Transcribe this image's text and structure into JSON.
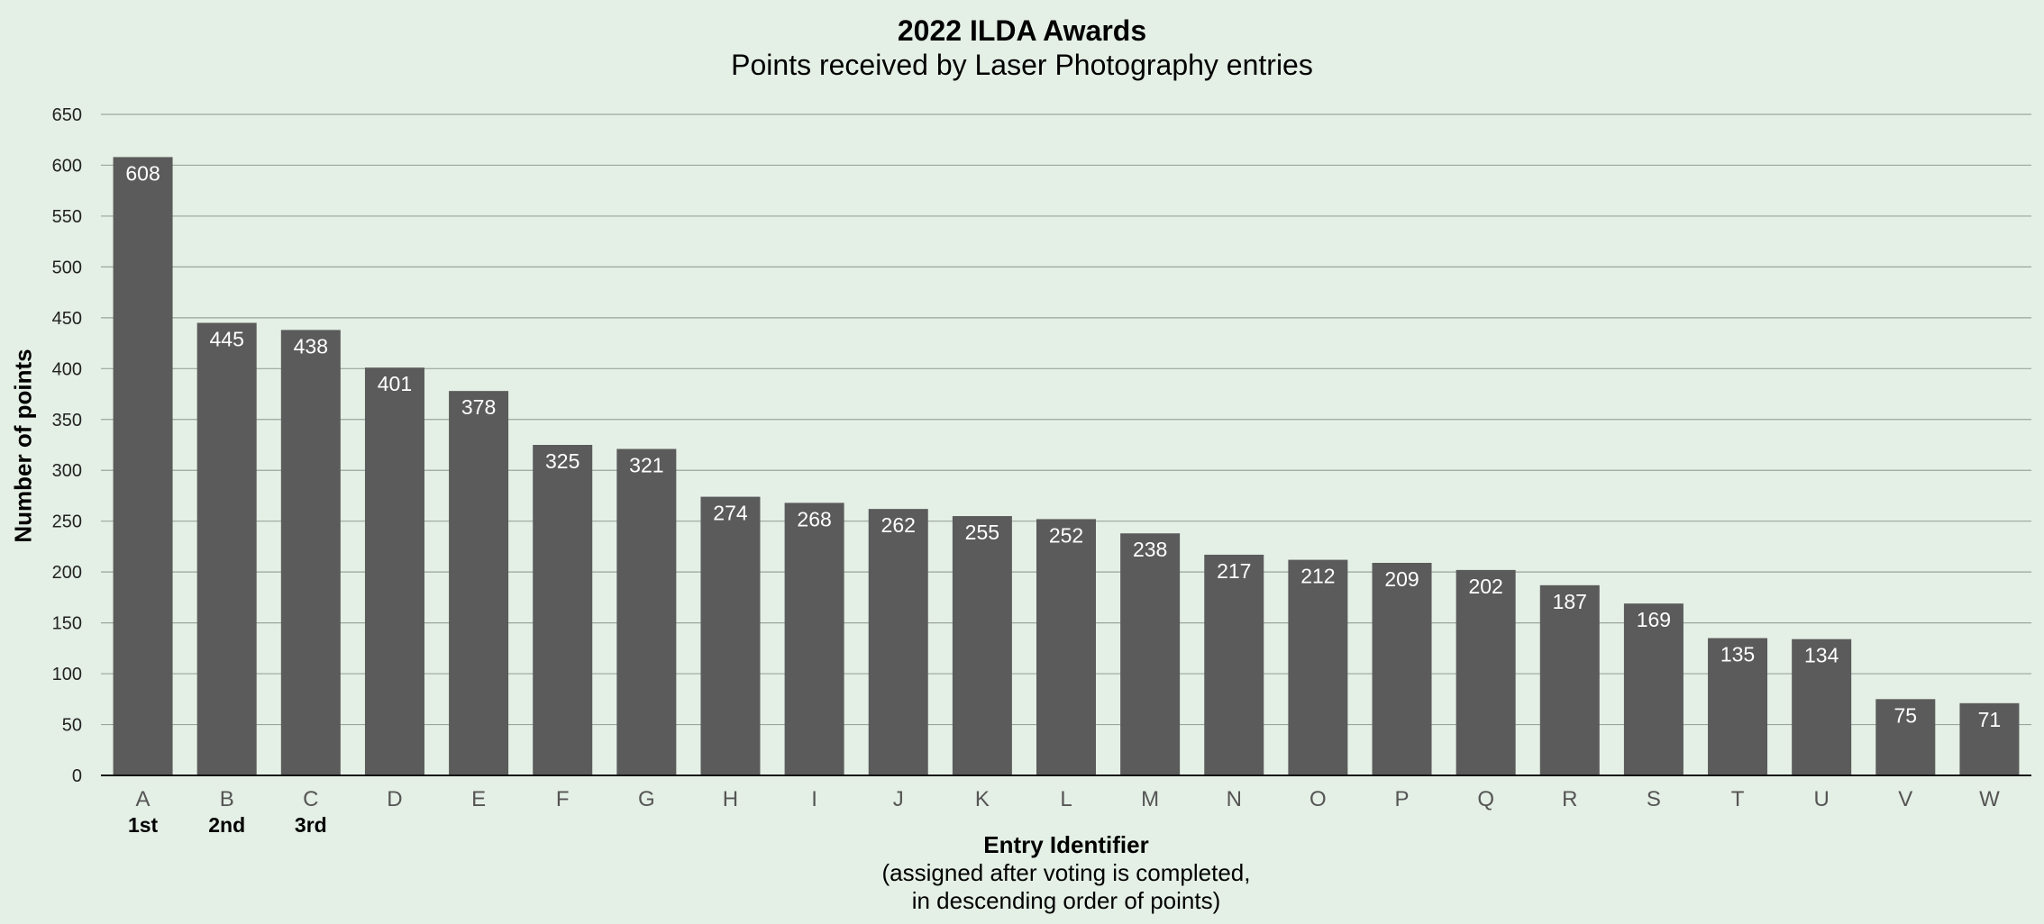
{
  "chart_data": {
    "type": "bar",
    "title": "2022 ILDA Awards",
    "subtitle": "Points received by Laser Photography entries",
    "ylabel": "Number of points",
    "xlabel": "Entry Identifier",
    "xlabel_note_lines": [
      "(assigned after voting is completed,",
      "in descending order of points)"
    ],
    "categories": [
      "A",
      "B",
      "C",
      "D",
      "E",
      "F",
      "G",
      "H",
      "I",
      "J",
      "K",
      "L",
      "M",
      "N",
      "O",
      "P",
      "Q",
      "R",
      "S",
      "T",
      "U",
      "V",
      "W"
    ],
    "values": [
      608,
      445,
      438,
      401,
      378,
      325,
      321,
      274,
      268,
      262,
      255,
      252,
      238,
      217,
      212,
      209,
      202,
      187,
      169,
      135,
      134,
      75,
      71
    ],
    "rank_labels": [
      "1st",
      "2nd",
      "3rd"
    ],
    "ylim": [
      0,
      650
    ],
    "yticks": [
      0,
      50,
      100,
      150,
      200,
      250,
      300,
      350,
      400,
      450,
      500,
      550,
      600,
      650
    ],
    "grid": true,
    "data_labels": true,
    "legend": "none",
    "colors": {
      "background": "#e4efe5",
      "bar": "#5b5b5b",
      "grid": "#9aa69c",
      "axis": "#111111",
      "value_label": "#ffffff"
    }
  }
}
